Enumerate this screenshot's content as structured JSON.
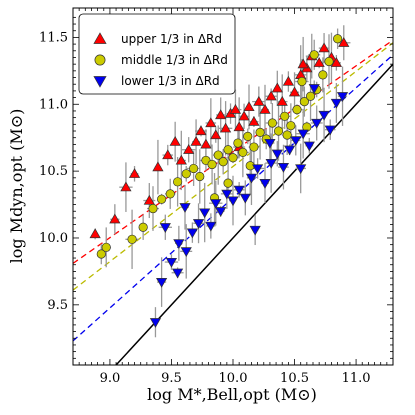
{
  "chart_data": {
    "type": "scatter",
    "title": "",
    "xlabel": "log M*,Bell,opt (M⊙)",
    "ylabel": "log Mdyn,opt (M⊙)",
    "xlim": [
      8.7,
      11.3
    ],
    "ylim": [
      9.05,
      11.72
    ],
    "x_ticks": [
      "9.0",
      "9.5",
      "10.0",
      "10.5",
      "11.0"
    ],
    "y_ticks": [
      "9.5",
      "10.0",
      "10.5",
      "11.0",
      "11.5"
    ],
    "grid": false,
    "legend_position": "top-left",
    "series": [
      {
        "name": "upper 1/3 in ΔRd",
        "marker": "triangle-up",
        "color": "#ff0000",
        "points": [
          [
            8.88,
            10.03
          ],
          [
            9.04,
            10.14
          ],
          [
            9.13,
            10.38
          ],
          [
            9.2,
            10.48
          ],
          [
            9.32,
            10.28
          ],
          [
            9.39,
            10.53
          ],
          [
            9.47,
            10.62
          ],
          [
            9.53,
            10.72
          ],
          [
            9.58,
            10.58
          ],
          [
            9.64,
            10.66
          ],
          [
            9.7,
            10.72
          ],
          [
            9.74,
            10.8
          ],
          [
            9.78,
            10.7
          ],
          [
            9.82,
            10.86
          ],
          [
            9.86,
            10.77
          ],
          [
            9.9,
            10.92
          ],
          [
            9.94,
            10.82
          ],
          [
            9.98,
            10.93
          ],
          [
            10.02,
            10.96
          ],
          [
            10.05,
            10.83
          ],
          [
            10.09,
            10.91
          ],
          [
            10.13,
            10.98
          ],
          [
            10.17,
            10.87
          ],
          [
            10.21,
            11.02
          ],
          [
            10.26,
            10.96
          ],
          [
            10.31,
            11.06
          ],
          [
            10.36,
            11.12
          ],
          [
            10.4,
            11.02
          ],
          [
            10.45,
            11.17
          ],
          [
            10.5,
            11.09
          ],
          [
            10.55,
            11.22
          ],
          [
            10.6,
            11.27
          ],
          [
            10.64,
            11.36
          ],
          [
            10.7,
            11.31
          ],
          [
            10.74,
            11.42
          ],
          [
            10.8,
            11.35
          ],
          [
            10.84,
            11.31
          ],
          [
            10.9,
            11.46
          ],
          [
            10.57,
            11.3
          ],
          [
            10.05,
            10.68
          ]
        ]
      },
      {
        "name": "middle 1/3 in ΔRd",
        "marker": "circle",
        "color": "#cccc00",
        "points": [
          [
            8.93,
            9.88
          ],
          [
            8.97,
            9.93
          ],
          [
            9.18,
            9.99
          ],
          [
            9.27,
            10.08
          ],
          [
            9.35,
            10.22
          ],
          [
            9.42,
            10.29
          ],
          [
            9.49,
            10.33
          ],
          [
            9.55,
            10.42
          ],
          [
            9.62,
            10.48
          ],
          [
            9.68,
            10.52
          ],
          [
            9.73,
            10.46
          ],
          [
            9.78,
            10.58
          ],
          [
            9.83,
            10.55
          ],
          [
            9.88,
            10.62
          ],
          [
            9.92,
            10.57
          ],
          [
            9.96,
            10.66
          ],
          [
            10.0,
            10.6
          ],
          [
            10.04,
            10.71
          ],
          [
            10.08,
            10.64
          ],
          [
            10.12,
            10.76
          ],
          [
            10.17,
            10.68
          ],
          [
            10.22,
            10.79
          ],
          [
            10.27,
            10.74
          ],
          [
            10.32,
            10.86
          ],
          [
            10.37,
            10.8
          ],
          [
            10.42,
            10.91
          ],
          [
            10.47,
            10.84
          ],
          [
            10.52,
            10.96
          ],
          [
            10.58,
            11.02
          ],
          [
            10.63,
            11.06
          ],
          [
            10.68,
            11.11
          ],
          [
            10.73,
            11.22
          ],
          [
            10.78,
            11.32
          ],
          [
            10.85,
            11.49
          ],
          [
            10.44,
            10.77
          ],
          [
            10.14,
            10.54
          ],
          [
            9.96,
            10.41
          ],
          [
            10.56,
            11.17
          ],
          [
            10.6,
            10.83
          ],
          [
            10.66,
            11.37
          ],
          [
            9.85,
            10.3
          ]
        ]
      },
      {
        "name": "lower 1/3 in ΔRd",
        "marker": "triangle-down",
        "color": "#0000ee",
        "points": [
          [
            9.37,
            9.37
          ],
          [
            9.42,
            9.67
          ],
          [
            9.5,
            9.82
          ],
          [
            9.56,
            9.96
          ],
          [
            9.62,
            9.9
          ],
          [
            9.67,
            10.04
          ],
          [
            9.72,
            10.11
          ],
          [
            9.77,
            10.19
          ],
          [
            9.82,
            10.09
          ],
          [
            9.86,
            10.26
          ],
          [
            9.9,
            10.2
          ],
          [
            9.95,
            10.33
          ],
          [
            10.0,
            10.28
          ],
          [
            10.05,
            10.36
          ],
          [
            10.1,
            10.3
          ],
          [
            10.15,
            10.45
          ],
          [
            10.2,
            10.52
          ],
          [
            10.26,
            10.41
          ],
          [
            10.31,
            10.56
          ],
          [
            10.36,
            10.63
          ],
          [
            10.41,
            10.53
          ],
          [
            10.46,
            10.66
          ],
          [
            10.51,
            10.73
          ],
          [
            10.57,
            10.78
          ],
          [
            10.62,
            10.69
          ],
          [
            10.68,
            10.86
          ],
          [
            10.74,
            10.92
          ],
          [
            10.79,
            10.81
          ],
          [
            10.84,
            11.01
          ],
          [
            10.89,
            11.06
          ],
          [
            9.45,
            10.08
          ],
          [
            9.61,
            10.23
          ],
          [
            9.55,
            9.74
          ],
          [
            10.18,
            10.06
          ],
          [
            10.55,
            10.52
          ],
          [
            10.66,
            11.12
          ],
          [
            10.3,
            10.71
          ]
        ]
      }
    ],
    "fit_lines": [
      {
        "color": "#ff0000",
        "style": "dashed",
        "points": [
          [
            8.7,
            9.81
          ],
          [
            11.3,
            11.48
          ]
        ]
      },
      {
        "color": "#bbbb00",
        "style": "dashed",
        "points": [
          [
            8.7,
            9.61
          ],
          [
            11.3,
            11.46
          ]
        ]
      },
      {
        "color": "#0000ee",
        "style": "dashed",
        "points": [
          [
            8.7,
            9.23
          ],
          [
            11.3,
            11.37
          ]
        ]
      },
      {
        "color": "#000000",
        "style": "solid",
        "points": [
          [
            8.7,
            8.7
          ],
          [
            11.3,
            11.3
          ]
        ]
      }
    ]
  }
}
